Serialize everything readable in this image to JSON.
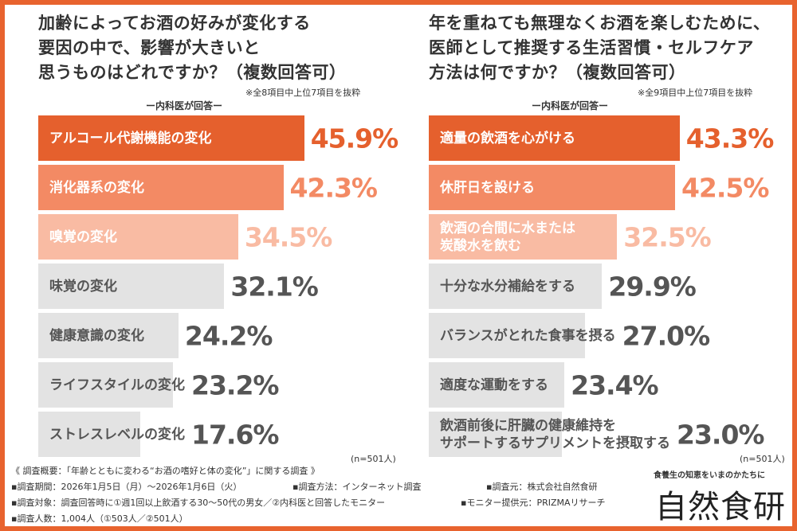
{
  "chart_data": [
    {
      "type": "bar",
      "orientation": "horizontal",
      "title": "加齢によってお酒の好みが変化する要因の中で、影響が大きいと思うものはどれですか？（複数回答可）",
      "title_lines": [
        "加齢によってお酒の好みが変化する",
        "要因の中で、影響が大きいと",
        "思うものはどれですか？（複数回答可）"
      ],
      "note": "※全8項目中上位7項目を抜粋",
      "subtitle": "ー内科医が回答ー",
      "n_label": "(n=501人)",
      "categories": [
        "アルコール代謝機能の変化",
        "消化器系の変化",
        "嗅覚の変化",
        "味覚の変化",
        "健康意識の変化",
        "ライフスタイルの変化",
        "ストレスレベルの変化"
      ],
      "values": [
        45.9,
        42.3,
        34.5,
        32.1,
        24.2,
        23.2,
        17.6
      ],
      "value_labels": [
        "45.9%",
        "42.3%",
        "34.5%",
        "32.1%",
        "24.2%",
        "23.2%",
        "17.6%"
      ],
      "unit": "%"
    },
    {
      "type": "bar",
      "orientation": "horizontal",
      "title": "年を重ねても無理なくお酒を楽しむために、医師として推奨する生活習慣・セルフケア方法は何ですか？（複数回答可）",
      "title_lines": [
        "年を重ねても無理なくお酒を楽しむために、",
        "医師として推奨する生活習慣・セルフケア",
        "方法は何ですか？（複数回答可）"
      ],
      "note": "※全9項目中上位7項目を抜粋",
      "subtitle": "ー内科医が回答ー",
      "n_label": "(n=501人)",
      "categories": [
        "適量の飲酒を心がける",
        "休肝日を設ける",
        "飲酒の合間に水または\n炭酸水を飲む",
        "十分な水分補給をする",
        "バランスがとれた食事を摂る",
        "適度な運動をする",
        "飲酒前後に肝臓の健康維持を\nサポートするサプリメントを摂取する"
      ],
      "values": [
        43.3,
        42.5,
        32.5,
        29.9,
        27.0,
        23.4,
        23.0
      ],
      "value_labels": [
        "43.3%",
        "42.5%",
        "32.5%",
        "29.9%",
        "27.0%",
        "23.4%",
        "23.0%"
      ],
      "unit": "%"
    }
  ],
  "colors": {
    "border": "#e8632e",
    "rank1": "#e5602d",
    "rank2": "#f38a64",
    "rank3": "#f9bba3",
    "other": "#e3e3e3",
    "other_text": "#555555"
  },
  "footer": {
    "heading": "《 調査概要：「年齢とともに変わる“お酒の嗜好と体の変化”」に関する調査 》",
    "period": "▪調査期間：2026年1月5日（月）～2026年1月6日（火）",
    "method": "▪調査方法：インターネット調査",
    "organizer": "▪調査元：株式会社自然食研",
    "target": "▪調査対象：調査回答時に①週1回以上飲酒する30～50代の男女／②内科医と回答したモニター",
    "provider": "▪モニター提供元：PRIZMAリサーチ",
    "count": "▪調査人数：1,004人（①503人／②501人）"
  },
  "logo": {
    "tagline": "食養生の知恵をいまのかたちに",
    "name": "自然食研"
  }
}
